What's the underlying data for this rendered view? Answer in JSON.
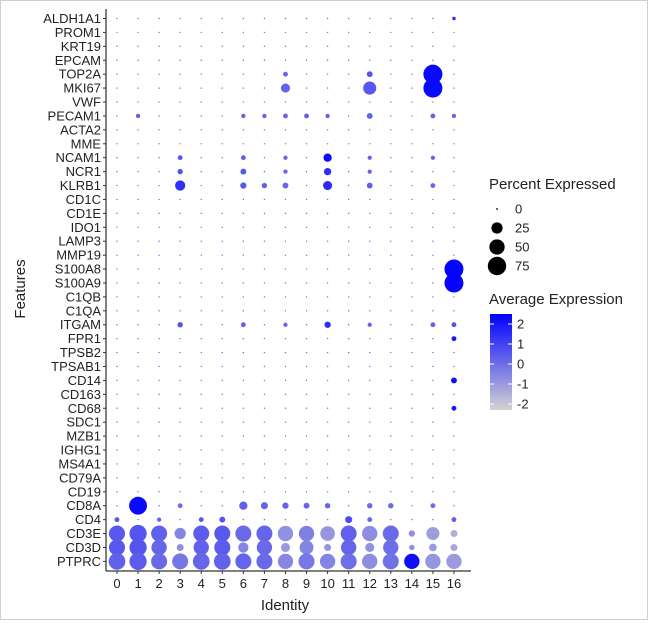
{
  "chart_data": {
    "type": "dotplot",
    "xlabel": "Identity",
    "ylabel": "Features",
    "x_categories": [
      "0",
      "1",
      "2",
      "3",
      "4",
      "5",
      "6",
      "7",
      "8",
      "9",
      "10",
      "11",
      "12",
      "13",
      "14",
      "15",
      "16"
    ],
    "features": [
      "ALDH1A1",
      "PROM1",
      "KRT19",
      "EPCAM",
      "TOP2A",
      "MKI67",
      "VWF",
      "PECAM1",
      "ACTA2",
      "MME",
      "NCAM1",
      "NCR1",
      "KLRB1",
      "CD1C",
      "CD1E",
      "IDO1",
      "LAMP3",
      "MMP19",
      "S100A8",
      "S100A9",
      "C1QB",
      "C1QA",
      "ITGAM",
      "FPR1",
      "TPSB2",
      "TPSAB1",
      "CD14",
      "CD163",
      "CD68",
      "SDC1",
      "MZB1",
      "IGHG1",
      "MS4A1",
      "CD79A",
      "CD19",
      "CD8A",
      "CD4",
      "CD3E",
      "CD3D",
      "PTPRC"
    ],
    "size_legend": {
      "title": "Percent Expressed",
      "values": [
        0,
        25,
        50,
        75
      ],
      "labels": [
        "0",
        "25",
        "50",
        "75"
      ]
    },
    "color_legend": {
      "title": "Average Expression",
      "range": [
        -2.3,
        2.5
      ],
      "ticks": [
        2,
        1,
        0,
        -1,
        -2
      ],
      "tick_labels": [
        "2",
        "1",
        "0",
        "-1",
        "-2"
      ],
      "low_color": "#d3d3d3",
      "high_color": "#0000ff"
    },
    "points": [
      {
        "feature": "ALDH1A1",
        "cluster": "16",
        "pct": 1,
        "avg": 1.5
      },
      {
        "feature": "TOP2A",
        "cluster": "8",
        "pct": 3,
        "avg": 0.2
      },
      {
        "feature": "TOP2A",
        "cluster": "12",
        "pct": 5,
        "avg": 0.6
      },
      {
        "feature": "TOP2A",
        "cluster": "15",
        "pct": 80,
        "avg": 2.3
      },
      {
        "feature": "MKI67",
        "cluster": "8",
        "pct": 15,
        "avg": 0.2
      },
      {
        "feature": "MKI67",
        "cluster": "12",
        "pct": 35,
        "avg": 0.5
      },
      {
        "feature": "MKI67",
        "cluster": "15",
        "pct": 80,
        "avg": 2.3
      },
      {
        "feature": "PECAM1",
        "cluster": "1",
        "pct": 2,
        "avg": 0.3
      },
      {
        "feature": "PECAM1",
        "cluster": "6",
        "pct": 2,
        "avg": 0.3
      },
      {
        "feature": "PECAM1",
        "cluster": "7",
        "pct": 2,
        "avg": 0.3
      },
      {
        "feature": "PECAM1",
        "cluster": "8",
        "pct": 3,
        "avg": 0.2
      },
      {
        "feature": "PECAM1",
        "cluster": "9",
        "pct": 3,
        "avg": 0.3
      },
      {
        "feature": "PECAM1",
        "cluster": "10",
        "pct": 2,
        "avg": 0.3
      },
      {
        "feature": "PECAM1",
        "cluster": "12",
        "pct": 5,
        "avg": 0.3
      },
      {
        "feature": "PECAM1",
        "cluster": "15",
        "pct": 3,
        "avg": 0.2
      },
      {
        "feature": "PECAM1",
        "cluster": "16",
        "pct": 2,
        "avg": 0.2
      },
      {
        "feature": "NCAM1",
        "cluster": "3",
        "pct": 3,
        "avg": 0.5
      },
      {
        "feature": "NCAM1",
        "cluster": "6",
        "pct": 3,
        "avg": 0.3
      },
      {
        "feature": "NCAM1",
        "cluster": "8",
        "pct": 2,
        "avg": 0.2
      },
      {
        "feature": "NCAM1",
        "cluster": "10",
        "pct": 12,
        "avg": 2.2
      },
      {
        "feature": "NCAM1",
        "cluster": "12",
        "pct": 2,
        "avg": 0.2
      },
      {
        "feature": "NCAM1",
        "cluster": "15",
        "pct": 2,
        "avg": 0.2
      },
      {
        "feature": "NCR1",
        "cluster": "3",
        "pct": 4,
        "avg": 0.6
      },
      {
        "feature": "NCR1",
        "cluster": "6",
        "pct": 5,
        "avg": 0.5
      },
      {
        "feature": "NCR1",
        "cluster": "8",
        "pct": 2,
        "avg": 0.2
      },
      {
        "feature": "NCR1",
        "cluster": "10",
        "pct": 9,
        "avg": 1.5
      },
      {
        "feature": "NCR1",
        "cluster": "12",
        "pct": 2,
        "avg": 0.2
      },
      {
        "feature": "KLRB1",
        "cluster": "3",
        "pct": 20,
        "avg": 1.4
      },
      {
        "feature": "KLRB1",
        "cluster": "6",
        "pct": 6,
        "avg": 0.5
      },
      {
        "feature": "KLRB1",
        "cluster": "7",
        "pct": 4,
        "avg": 0.3
      },
      {
        "feature": "KLRB1",
        "cluster": "8",
        "pct": 5,
        "avg": 0.2
      },
      {
        "feature": "KLRB1",
        "cluster": "10",
        "pct": 15,
        "avg": 1.5
      },
      {
        "feature": "KLRB1",
        "cluster": "12",
        "pct": 5,
        "avg": 0.3
      },
      {
        "feature": "KLRB1",
        "cluster": "15",
        "pct": 3,
        "avg": 0.2
      },
      {
        "feature": "S100A8",
        "cluster": "16",
        "pct": 80,
        "avg": 2.4
      },
      {
        "feature": "S100A9",
        "cluster": "16",
        "pct": 80,
        "avg": 2.4
      },
      {
        "feature": "ITGAM",
        "cluster": "3",
        "pct": 4,
        "avg": 0.6
      },
      {
        "feature": "ITGAM",
        "cluster": "6",
        "pct": 3,
        "avg": 0.3
      },
      {
        "feature": "ITGAM",
        "cluster": "8",
        "pct": 2,
        "avg": 0.2
      },
      {
        "feature": "ITGAM",
        "cluster": "10",
        "pct": 6,
        "avg": 1.5
      },
      {
        "feature": "ITGAM",
        "cluster": "12",
        "pct": 2,
        "avg": 0.2
      },
      {
        "feature": "ITGAM",
        "cluster": "15",
        "pct": 3,
        "avg": 0.2
      },
      {
        "feature": "ITGAM",
        "cluster": "16",
        "pct": 3,
        "avg": 0.6
      },
      {
        "feature": "FPR1",
        "cluster": "16",
        "pct": 3,
        "avg": 2.0
      },
      {
        "feature": "CD14",
        "cluster": "16",
        "pct": 5,
        "avg": 2.2
      },
      {
        "feature": "CD68",
        "cluster": "16",
        "pct": 3,
        "avg": 2.0
      },
      {
        "feature": "CD8A",
        "cluster": "1",
        "pct": 70,
        "avg": 2.3
      },
      {
        "feature": "CD8A",
        "cluster": "3",
        "pct": 3,
        "avg": 0.0
      },
      {
        "feature": "CD8A",
        "cluster": "6",
        "pct": 12,
        "avg": 0.3
      },
      {
        "feature": "CD8A",
        "cluster": "7",
        "pct": 8,
        "avg": 0.2
      },
      {
        "feature": "CD8A",
        "cluster": "8",
        "pct": 6,
        "avg": 0.2
      },
      {
        "feature": "CD8A",
        "cluster": "9",
        "pct": 5,
        "avg": 0.2
      },
      {
        "feature": "CD8A",
        "cluster": "10",
        "pct": 4,
        "avg": 0.2
      },
      {
        "feature": "CD8A",
        "cluster": "12",
        "pct": 4,
        "avg": 0.1
      },
      {
        "feature": "CD8A",
        "cluster": "13",
        "pct": 4,
        "avg": 0.1
      },
      {
        "feature": "CD8A",
        "cluster": "15",
        "pct": 3,
        "avg": 0.1
      },
      {
        "feature": "CD4",
        "cluster": "0",
        "pct": 3,
        "avg": 0.5
      },
      {
        "feature": "CD4",
        "cluster": "2",
        "pct": 2,
        "avg": 0.3
      },
      {
        "feature": "CD4",
        "cluster": "4",
        "pct": 3,
        "avg": 0.5
      },
      {
        "feature": "CD4",
        "cluster": "5",
        "pct": 5,
        "avg": 0.6
      },
      {
        "feature": "CD4",
        "cluster": "11",
        "pct": 8,
        "avg": 0.8
      },
      {
        "feature": "CD4",
        "cluster": "12",
        "pct": 3,
        "avg": 0.1
      },
      {
        "feature": "CD4",
        "cluster": "16",
        "pct": 3,
        "avg": 0.3
      },
      {
        "feature": "CD3E",
        "cluster": "0",
        "pct": 55,
        "avg": 0.5
      },
      {
        "feature": "CD3E",
        "cluster": "1",
        "pct": 65,
        "avg": 0.6
      },
      {
        "feature": "CD3E",
        "cluster": "2",
        "pct": 55,
        "avg": 0.3
      },
      {
        "feature": "CD3E",
        "cluster": "3",
        "pct": 25,
        "avg": -0.5
      },
      {
        "feature": "CD3E",
        "cluster": "4",
        "pct": 55,
        "avg": 0.4
      },
      {
        "feature": "CD3E",
        "cluster": "5",
        "pct": 55,
        "avg": 0.5
      },
      {
        "feature": "CD3E",
        "cluster": "6",
        "pct": 55,
        "avg": 0.1
      },
      {
        "feature": "CD3E",
        "cluster": "7",
        "pct": 55,
        "avg": 0.2
      },
      {
        "feature": "CD3E",
        "cluster": "8",
        "pct": 50,
        "avg": -0.8
      },
      {
        "feature": "CD3E",
        "cluster": "9",
        "pct": 50,
        "avg": -0.4
      },
      {
        "feature": "CD3E",
        "cluster": "10",
        "pct": 45,
        "avg": -0.9
      },
      {
        "feature": "CD3E",
        "cluster": "11",
        "pct": 55,
        "avg": 0.3
      },
      {
        "feature": "CD3E",
        "cluster": "12",
        "pct": 50,
        "avg": -0.7
      },
      {
        "feature": "CD3E",
        "cluster": "13",
        "pct": 55,
        "avg": 0.1
      },
      {
        "feature": "CD3E",
        "cluster": "14",
        "pct": 6,
        "avg": -0.8
      },
      {
        "feature": "CD3E",
        "cluster": "15",
        "pct": 35,
        "avg": -1.1
      },
      {
        "feature": "CD3E",
        "cluster": "16",
        "pct": 8,
        "avg": -1.5
      },
      {
        "feature": "CD3D",
        "cluster": "0",
        "pct": 55,
        "avg": 0.5
      },
      {
        "feature": "CD3D",
        "cluster": "1",
        "pct": 65,
        "avg": 0.6
      },
      {
        "feature": "CD3D",
        "cluster": "2",
        "pct": 50,
        "avg": 0.2
      },
      {
        "feature": "CD3D",
        "cluster": "3",
        "pct": 8,
        "avg": -0.8
      },
      {
        "feature": "CD3D",
        "cluster": "4",
        "pct": 50,
        "avg": 0.3
      },
      {
        "feature": "CD3D",
        "cluster": "5",
        "pct": 55,
        "avg": 0.4
      },
      {
        "feature": "CD3D",
        "cluster": "6",
        "pct": 20,
        "avg": -0.5
      },
      {
        "feature": "CD3D",
        "cluster": "7",
        "pct": 50,
        "avg": 0.1
      },
      {
        "feature": "CD3D",
        "cluster": "8",
        "pct": 15,
        "avg": -1.0
      },
      {
        "feature": "CD3D",
        "cluster": "9",
        "pct": 40,
        "avg": -0.5
      },
      {
        "feature": "CD3D",
        "cluster": "10",
        "pct": 8,
        "avg": -0.9
      },
      {
        "feature": "CD3D",
        "cluster": "11",
        "pct": 50,
        "avg": 0.2
      },
      {
        "feature": "CD3D",
        "cluster": "12",
        "pct": 15,
        "avg": -0.8
      },
      {
        "feature": "CD3D",
        "cluster": "13",
        "pct": 50,
        "avg": 0.0
      },
      {
        "feature": "CD3D",
        "cluster": "14",
        "pct": 4,
        "avg": -0.8
      },
      {
        "feature": "CD3D",
        "cluster": "15",
        "pct": 10,
        "avg": -1.0
      },
      {
        "feature": "CD3D",
        "cluster": "16",
        "pct": 8,
        "avg": -1.3
      },
      {
        "feature": "PTPRC",
        "cluster": "0",
        "pct": 60,
        "avg": 0.3
      },
      {
        "feature": "PTPRC",
        "cluster": "1",
        "pct": 65,
        "avg": 0.4
      },
      {
        "feature": "PTPRC",
        "cluster": "2",
        "pct": 55,
        "avg": 0.1
      },
      {
        "feature": "PTPRC",
        "cluster": "3",
        "pct": 55,
        "avg": -0.2
      },
      {
        "feature": "PTPRC",
        "cluster": "4",
        "pct": 60,
        "avg": 0.2
      },
      {
        "feature": "PTPRC",
        "cluster": "5",
        "pct": 60,
        "avg": 0.3
      },
      {
        "feature": "PTPRC",
        "cluster": "6",
        "pct": 55,
        "avg": 0.2
      },
      {
        "feature": "PTPRC",
        "cluster": "7",
        "pct": 55,
        "avg": 0.1
      },
      {
        "feature": "PTPRC",
        "cluster": "8",
        "pct": 50,
        "avg": -0.6
      },
      {
        "feature": "PTPRC",
        "cluster": "9",
        "pct": 55,
        "avg": -0.2
      },
      {
        "feature": "PTPRC",
        "cluster": "10",
        "pct": 50,
        "avg": -0.5
      },
      {
        "feature": "PTPRC",
        "cluster": "11",
        "pct": 55,
        "avg": 0.0
      },
      {
        "feature": "PTPRC",
        "cluster": "12",
        "pct": 50,
        "avg": -0.7
      },
      {
        "feature": "PTPRC",
        "cluster": "13",
        "pct": 55,
        "avg": -0.1
      },
      {
        "feature": "PTPRC",
        "cluster": "14",
        "pct": 50,
        "avg": 2.2
      },
      {
        "feature": "PTPRC",
        "cluster": "15",
        "pct": 50,
        "avg": -0.9
      },
      {
        "feature": "PTPRC",
        "cluster": "16",
        "pct": 50,
        "avg": -1.0
      }
    ]
  }
}
